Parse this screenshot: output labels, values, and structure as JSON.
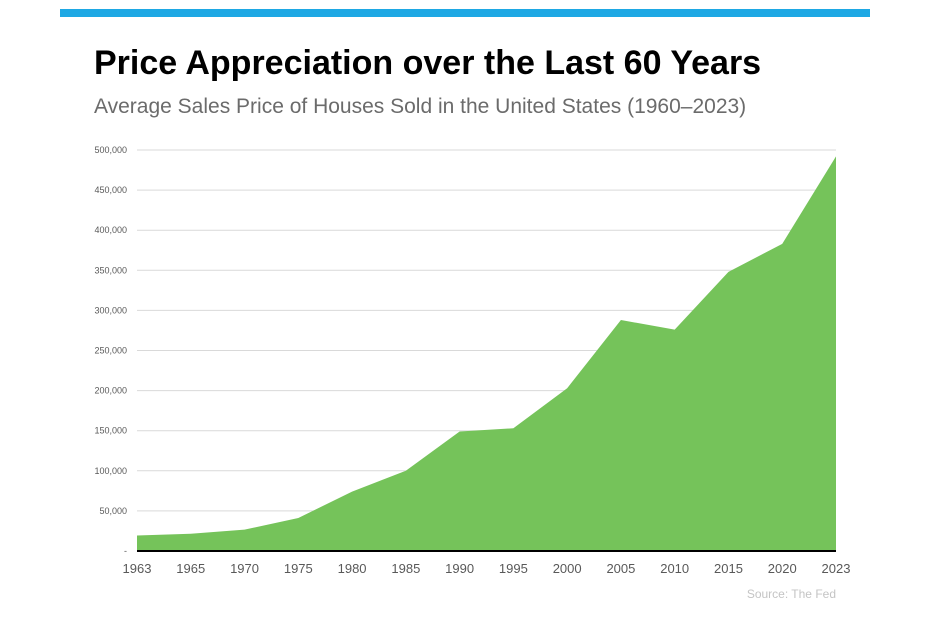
{
  "header": {
    "title": "Price Appreciation over the Last 60 Years",
    "subtitle": "Average Sales Price of Houses Sold in the United States (1960–2023)"
  },
  "colors": {
    "accent_bar": "#1ea8e4",
    "area_fill": "#75c35a",
    "gridline": "#d9d9d9",
    "baseline": "#000000",
    "tick_text": "#595959"
  },
  "source": "Source: The Fed",
  "chart_data": {
    "type": "area",
    "title": "Price Appreciation over the Last 60 Years",
    "subtitle": "Average Sales Price of Houses Sold in the United States (1960–2023)",
    "xlabel": "",
    "ylabel": "",
    "x": [
      "1963",
      "1965",
      "1970",
      "1975",
      "1980",
      "1985",
      "1990",
      "1995",
      "2000",
      "2005",
      "2010",
      "2015",
      "2020",
      "2023"
    ],
    "series": [
      {
        "values": [
          19300,
          21500,
          26600,
          41200,
          74000,
          100000,
          149000,
          153000,
          203000,
          288000,
          276000,
          348000,
          383000,
          492000
        ]
      }
    ],
    "ylim": [
      0,
      500000
    ],
    "yticks": [
      0,
      50000,
      100000,
      150000,
      200000,
      250000,
      300000,
      350000,
      400000,
      450000,
      500000
    ],
    "ytick_labels": [
      "-",
      "50,000",
      "100,000",
      "150,000",
      "200,000",
      "250,000",
      "300,000",
      "350,000",
      "400,000",
      "450,000",
      "500,000"
    ],
    "grid": true,
    "legend": "none",
    "source": "Source: The Fed"
  }
}
